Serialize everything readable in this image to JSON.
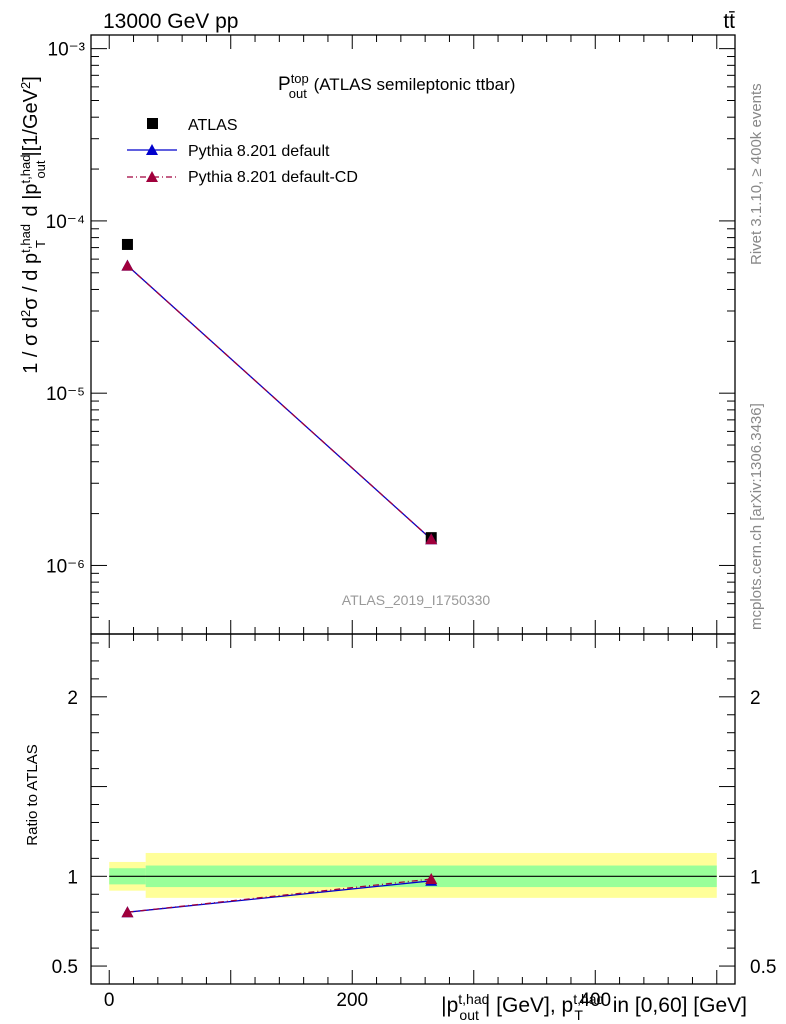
{
  "header": {
    "left": "13000 GeV pp",
    "right": "tt̄"
  },
  "side_labels": {
    "rivet": "Rivet 3.1.10, ≥ 400k events",
    "mcplots": "mcplots.cern.ch [arXiv:1306.3436]"
  },
  "analysis_id": "ATLAS_2019_I1750330",
  "title": {
    "main": "P",
    "sup": "top",
    "sub": "out",
    "rest": " (ATLAS semileptonic ttbar)"
  },
  "colors": {
    "atlas": "#000000",
    "pythia_default": "#0000cc",
    "pythia_cd": "#a0003c",
    "band_inner": "#99ff99",
    "band_outer": "#ffff99"
  },
  "chart_data": [
    {
      "type": "scatter",
      "panel": "main",
      "yscale": "log",
      "ylim": [
        4e-07,
        0.0012
      ],
      "xlim": [
        -15,
        515
      ],
      "ylabel": "1 / σ d²σ / d p_T^{t,had} d |p_out^{t,had}| [1/GeV²]",
      "ytick_labels": [
        "10⁻⁶",
        "10⁻⁵",
        "10⁻⁴",
        "10⁻³"
      ],
      "ytick_values": [
        1e-06,
        1e-05,
        0.0001,
        0.001
      ],
      "legend_position": "top-left",
      "series": [
        {
          "name": "ATLAS",
          "marker": "square",
          "x": [
            15,
            265
          ],
          "y": [
            7.3e-05,
            1.45e-06
          ]
        },
        {
          "name": "Pythia 8.201 default",
          "marker": "triangle",
          "line": "solid",
          "x": [
            15,
            265
          ],
          "y": [
            5.5e-05,
            1.42e-06
          ]
        },
        {
          "name": "Pythia 8.201 default-CD",
          "marker": "triangle",
          "line": "dashdot",
          "x": [
            15,
            265
          ],
          "y": [
            5.5e-05,
            1.42e-06
          ]
        }
      ]
    },
    {
      "type": "line",
      "panel": "ratio",
      "ylim": [
        0.4,
        2.35
      ],
      "xlim": [
        -15,
        515
      ],
      "ylabel": "Ratio to ATLAS",
      "xlabel": "|p_out^{t,had}| [GeV], p_T^{t,had} in [0,60] [GeV]",
      "xtick_labels": [
        "0",
        "200",
        "400"
      ],
      "xtick_values": [
        0,
        200,
        400
      ],
      "ytick_labels": [
        "0.5",
        "1",
        "2"
      ],
      "ytick_values": [
        0.5,
        1,
        2
      ],
      "bands": [
        {
          "x0": 0,
          "x1": 30,
          "inner": [
            0.955,
            1.045
          ],
          "outer": [
            0.92,
            1.08
          ]
        },
        {
          "x0": 30,
          "x1": 500,
          "inner": [
            0.94,
            1.06
          ],
          "outer": [
            0.88,
            1.13
          ]
        }
      ],
      "series": [
        {
          "name": "Pythia 8.201 default",
          "x": [
            15,
            265
          ],
          "y": [
            0.8,
            0.975
          ]
        },
        {
          "name": "Pythia 8.201 default-CD",
          "x": [
            15,
            265
          ],
          "y": [
            0.8,
            0.985
          ]
        }
      ]
    }
  ]
}
